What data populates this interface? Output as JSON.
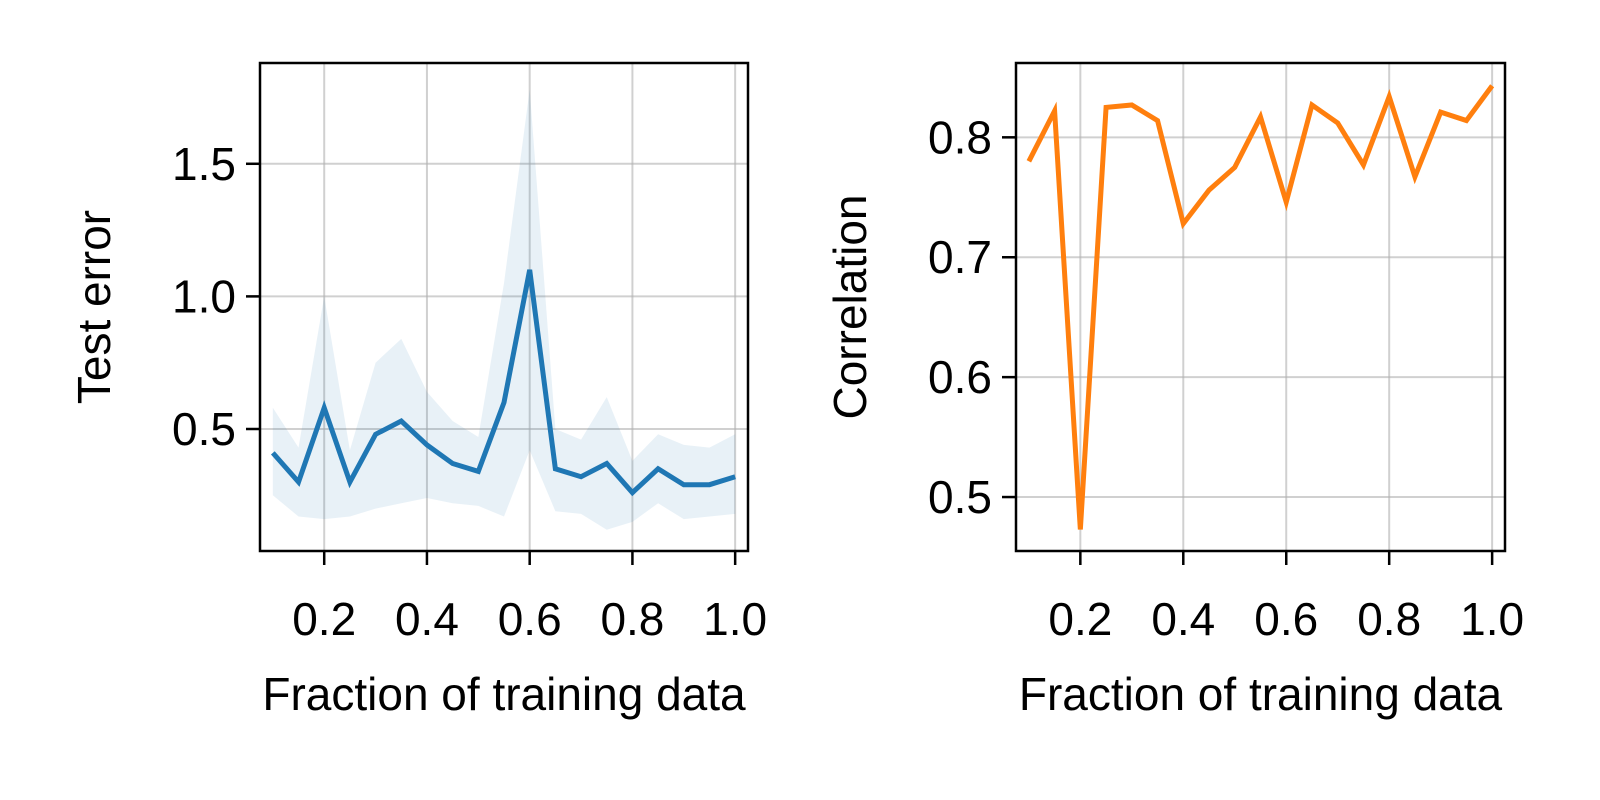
{
  "chart_data": [
    {
      "type": "line",
      "xlabel": "Fraction of training data",
      "ylabel": "Test error",
      "xlim": [
        0.075,
        1.025
      ],
      "ylim": [
        0.04,
        1.88
      ],
      "xticks": [
        0.2,
        0.4,
        0.6,
        0.8,
        1.0
      ],
      "xtick_labels": [
        "0.2",
        "0.4",
        "0.6",
        "0.8",
        "1.0"
      ],
      "yticks": [
        0.5,
        1.0,
        1.5
      ],
      "ytick_labels": [
        "0.5",
        "1.0",
        "1.5"
      ],
      "grid": true,
      "x": [
        0.1,
        0.15,
        0.2,
        0.25,
        0.3,
        0.35,
        0.4,
        0.45,
        0.5,
        0.55,
        0.6,
        0.65,
        0.7,
        0.75,
        0.8,
        0.85,
        0.9,
        0.95,
        1.0
      ],
      "series": [
        {
          "color": "#1f77b4",
          "values": [
            0.41,
            0.3,
            0.58,
            0.3,
            0.48,
            0.53,
            0.44,
            0.37,
            0.34,
            0.6,
            1.1,
            0.35,
            0.32,
            0.37,
            0.26,
            0.35,
            0.29,
            0.29,
            0.32
          ],
          "band_lower": [
            0.25,
            0.17,
            0.16,
            0.17,
            0.2,
            0.22,
            0.24,
            0.22,
            0.21,
            0.17,
            0.42,
            0.19,
            0.18,
            0.12,
            0.15,
            0.22,
            0.16,
            0.17,
            0.18
          ],
          "band_upper": [
            0.58,
            0.43,
            1.0,
            0.42,
            0.75,
            0.84,
            0.64,
            0.53,
            0.47,
            1.05,
            1.78,
            0.5,
            0.46,
            0.62,
            0.38,
            0.48,
            0.44,
            0.43,
            0.48
          ],
          "band_color": "#1f77b4",
          "band_opacity": 0.1
        }
      ]
    },
    {
      "type": "line",
      "xlabel": "Fraction of training data",
      "ylabel": "Correlation",
      "xlim": [
        0.075,
        1.025
      ],
      "ylim": [
        0.455,
        0.862
      ],
      "xticks": [
        0.2,
        0.4,
        0.6,
        0.8,
        1.0
      ],
      "xtick_labels": [
        "0.2",
        "0.4",
        "0.6",
        "0.8",
        "1.0"
      ],
      "yticks": [
        0.5,
        0.6,
        0.7,
        0.8
      ],
      "ytick_labels": [
        "0.5",
        "0.6",
        "0.7",
        "0.8"
      ],
      "grid": true,
      "x": [
        0.1,
        0.15,
        0.2,
        0.25,
        0.3,
        0.35,
        0.4,
        0.45,
        0.5,
        0.55,
        0.6,
        0.65,
        0.7,
        0.75,
        0.8,
        0.85,
        0.9,
        0.95,
        1.0
      ],
      "series": [
        {
          "color": "#ff7f0e",
          "values": [
            0.78,
            0.822,
            0.473,
            0.825,
            0.827,
            0.814,
            0.728,
            0.756,
            0.775,
            0.817,
            0.746,
            0.827,
            0.812,
            0.777,
            0.834,
            0.767,
            0.821,
            0.814,
            0.843
          ]
        }
      ]
    }
  ]
}
